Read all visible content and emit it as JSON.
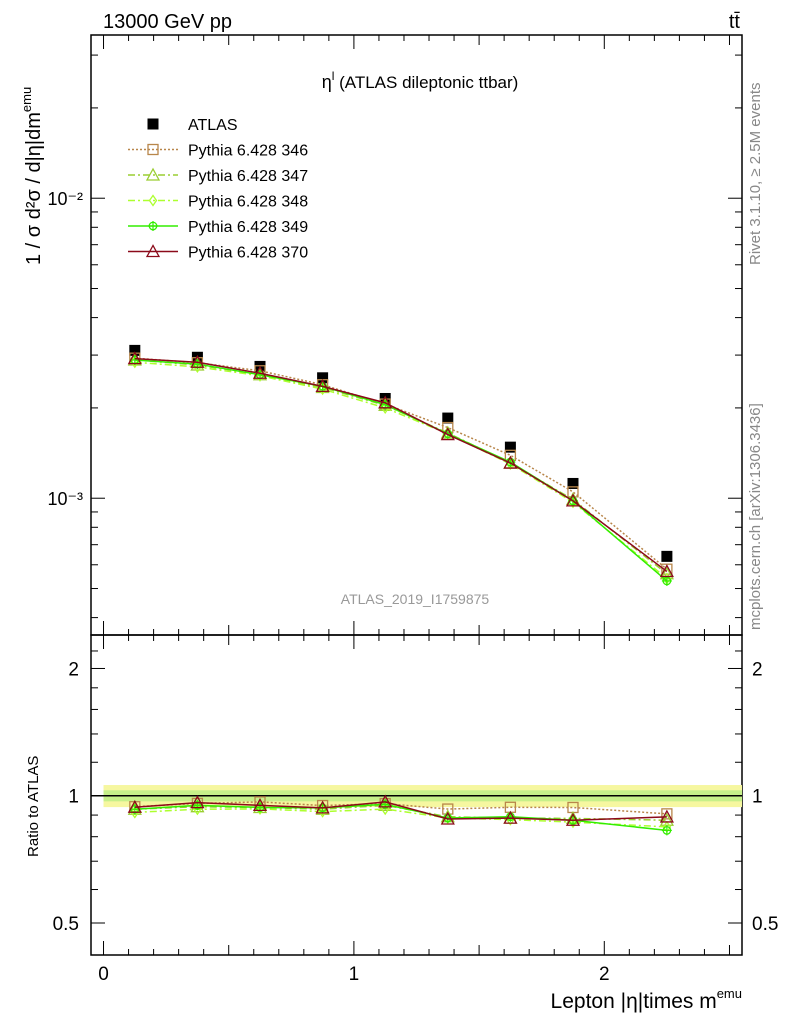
{
  "header": {
    "energy": "13000 GeV pp",
    "process": "tt̄"
  },
  "side_text": {
    "rivet": "Rivet 3.1.10, ≥ 2.5M events",
    "url": "mcplots.cern.ch [arXiv:1306.3436]"
  },
  "chart_data": [
    {
      "type": "line",
      "title": "η",
      "title_sup": "l",
      "title_rest": " (ATLAS dileptonic ttbar)",
      "ylabel": "1 / σ  d²σ / d|η|dm",
      "ylabel_sup": "emu",
      "watermark": "ATLAS_2019_I1759875",
      "yscale": "log",
      "ylim": [
        0.00035,
        0.035
      ],
      "xlim": [
        -0.05,
        2.55
      ],
      "ytick_labels": [
        "10⁻²",
        "10⁻³"
      ],
      "x": [
        0.125,
        0.375,
        0.625,
        0.875,
        1.125,
        1.375,
        1.625,
        1.875,
        2.25
      ],
      "legend_placement": "top-left",
      "series": [
        {
          "name": "ATLAS",
          "color": "#000000",
          "marker": "square-filled",
          "line": "none",
          "values": [
            0.00311,
            0.00295,
            0.00275,
            0.00252,
            0.00215,
            0.00185,
            0.00148,
            0.00112,
            0.00064
          ]
        },
        {
          "name": "Pythia 6.428 346",
          "color": "#b8864a",
          "marker": "square-open",
          "line": "dotted",
          "values": [
            0.00293,
            0.00283,
            0.00266,
            0.00239,
            0.00206,
            0.00172,
            0.00139,
            0.00105,
            0.00058
          ]
        },
        {
          "name": "Pythia 6.428 347",
          "color": "#9acd32",
          "marker": "triangle-open",
          "line": "dashdot",
          "values": [
            0.00289,
            0.00278,
            0.00258,
            0.00234,
            0.00204,
            0.00165,
            0.00131,
            0.00099,
            0.00056
          ]
        },
        {
          "name": "Pythia 6.428 348",
          "color": "#adff2f",
          "marker": "diamond-open",
          "line": "dashdot",
          "values": [
            0.00284,
            0.00274,
            0.00256,
            0.00231,
            0.002,
            0.00164,
            0.0013,
            0.00097,
            0.00054
          ]
        },
        {
          "name": "Pythia 6.428 349",
          "color": "#33ee00",
          "marker": "cross-circle",
          "line": "solid",
          "values": [
            0.00289,
            0.0028,
            0.00258,
            0.00236,
            0.00205,
            0.00164,
            0.00132,
            0.00098,
            0.00053
          ]
        },
        {
          "name": "Pythia 6.428 370",
          "color": "#8b0a1a",
          "marker": "triangle-open",
          "line": "solid",
          "values": [
            0.00292,
            0.00284,
            0.00261,
            0.00236,
            0.00208,
            0.00163,
            0.00131,
            0.00098,
            0.00057
          ]
        }
      ]
    },
    {
      "type": "line",
      "ylabel": "Ratio to ATLAS",
      "xlabel": "Lepton |η|times m",
      "xlabel_sup": "emu",
      "ylim": [
        0.42,
        2.4
      ],
      "yscale": "log",
      "xlim": [
        -0.05,
        2.55
      ],
      "x_ticks": [
        0,
        1,
        2
      ],
      "x_tick_labels": [
        "0",
        "1",
        "2"
      ],
      "y_ticks": [
        0.5,
        1,
        2
      ],
      "y_tick_labels": [
        "0.5",
        "1",
        "2"
      ],
      "x": [
        0.125,
        0.375,
        0.625,
        0.875,
        1.125,
        1.375,
        1.625,
        1.875,
        2.25
      ],
      "band": {
        "color_outer": "#f6f7a0",
        "color_inner": "#c6f08a"
      },
      "series": [
        {
          "name": "Pythia 6.428 346",
          "color": "#b8864a",
          "marker": "square-open",
          "line": "dotted",
          "values": [
            0.942,
            0.959,
            0.967,
            0.948,
            0.958,
            0.93,
            0.939,
            0.938,
            0.906
          ]
        },
        {
          "name": "Pythia 6.428 347",
          "color": "#9acd32",
          "marker": "triangle-open",
          "line": "dashdot",
          "values": [
            0.929,
            0.942,
            0.938,
            0.929,
            0.949,
            0.892,
            0.885,
            0.884,
            0.875
          ]
        },
        {
          "name": "Pythia 6.428 348",
          "color": "#adff2f",
          "marker": "diamond-open",
          "line": "dashdot",
          "values": [
            0.913,
            0.929,
            0.931,
            0.917,
            0.93,
            0.886,
            0.878,
            0.866,
            0.844
          ]
        },
        {
          "name": "Pythia 6.428 349",
          "color": "#33ee00",
          "marker": "cross-circle",
          "line": "solid",
          "values": [
            0.929,
            0.949,
            0.938,
            0.936,
            0.954,
            0.886,
            0.892,
            0.875,
            0.828
          ]
        },
        {
          "name": "Pythia 6.428 370",
          "color": "#8b0a1a",
          "marker": "triangle-open",
          "line": "solid",
          "values": [
            0.939,
            0.963,
            0.949,
            0.936,
            0.967,
            0.881,
            0.885,
            0.875,
            0.891
          ]
        }
      ]
    }
  ]
}
